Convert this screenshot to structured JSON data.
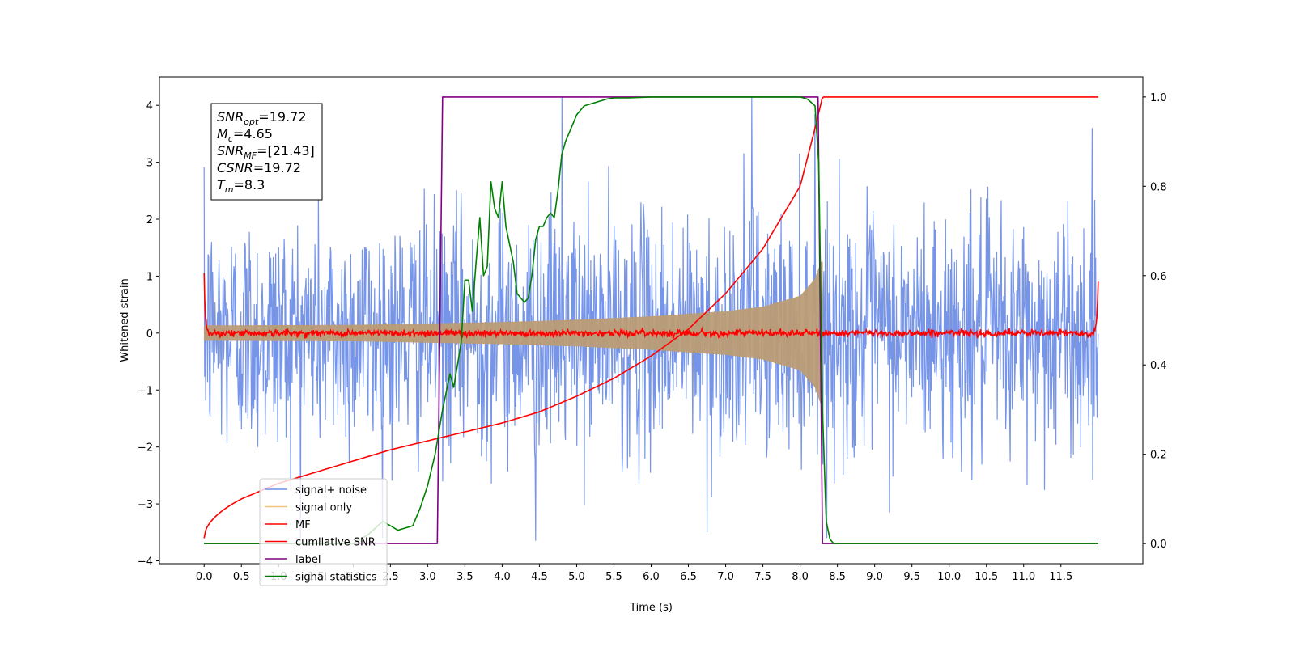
{
  "chart_data": {
    "type": "line",
    "xlabel": "Time (s)",
    "ylabel": "Whitened strain",
    "xlim": [
      -0.6,
      12.6
    ],
    "ylim": [
      -4.05,
      4.5
    ],
    "ylim_right": [
      -0.045,
      1.045
    ],
    "x_ticks": [
      0.0,
      0.5,
      1.0,
      1.5,
      2.0,
      2.5,
      3.0,
      3.5,
      4.0,
      4.5,
      5.0,
      5.5,
      6.0,
      6.5,
      7.0,
      7.5,
      8.0,
      8.5,
      9.0,
      9.5,
      10.0,
      10.5,
      11.0,
      11.5
    ],
    "x_tick_labels": [
      "0.0",
      "0.5",
      "1.0",
      "1.5",
      "2.0",
      "2.5",
      "3.0",
      "3.5",
      "4.0",
      "4.5",
      "5.0",
      "5.5",
      "6.0",
      "6.5",
      "7.0",
      "7.5",
      "8.0",
      "8.5",
      "9.0",
      "9.5",
      "10.0",
      "10.5",
      "11.0",
      "11.5"
    ],
    "y_ticks": [
      -4,
      -3,
      -2,
      -1,
      0,
      1,
      2,
      3,
      4
    ],
    "y_tick_labels": [
      "−4",
      "−3",
      "−2",
      "−1",
      "0",
      "1",
      "2",
      "3",
      "4"
    ],
    "y_right_ticks": [
      0.0,
      0.2,
      0.4,
      0.6,
      0.8,
      1.0
    ],
    "y_right_tick_labels": [
      "0.0",
      "0.2",
      "0.4",
      "0.6",
      "0.8",
      "1.0"
    ],
    "annotation": {
      "snr_opt": {
        "name": "SNR",
        "sub": "opt",
        "value": "=19.72"
      },
      "mc": {
        "name": "M",
        "sub": "c",
        "value": "=4.65"
      },
      "snr_mf": {
        "name": "SNR",
        "sub": "MF",
        "value": "=[21.43]"
      },
      "csnr": {
        "name": "CSNR",
        "sub": "",
        "value": "=19.72"
      },
      "tm": {
        "name": "T",
        "sub": "m",
        "value": "=8.3"
      }
    },
    "legend_position": "lower-left",
    "series": [
      {
        "name": "signal+ noise",
        "color": "#6f8fe8",
        "axis": "left",
        "t_range": [
          0,
          12
        ],
        "noise_std": 1.0,
        "peaks": [
          [
            4.8,
            4.15
          ],
          [
            7.35,
            4.15
          ],
          [
            4.45,
            -3.65
          ],
          [
            6.75,
            -3.5
          ],
          [
            8.2,
            3.85
          ]
        ]
      },
      {
        "name": "signal only",
        "color": "#bb9c76",
        "axis": "left",
        "t_range": [
          0,
          8.3
        ],
        "amplitude_envelope": [
          [
            0.0,
            0.13
          ],
          [
            2.0,
            0.14
          ],
          [
            4.0,
            0.19
          ],
          [
            5.0,
            0.23
          ],
          [
            6.0,
            0.29
          ],
          [
            7.0,
            0.38
          ],
          [
            7.5,
            0.46
          ],
          [
            8.0,
            0.65
          ],
          [
            8.2,
            0.95
          ],
          [
            8.28,
            1.25
          ]
        ]
      },
      {
        "name": "MF",
        "color": "#ff0000",
        "axis": "left",
        "t_range": [
          0,
          12
        ],
        "start_value": 1.0,
        "end_value": 0.92,
        "noise_std": 0.03
      },
      {
        "name": "cumilative SNR",
        "color": "#ff0000",
        "axis": "right",
        "x": [
          0.0,
          0.05,
          0.5,
          1.0,
          1.5,
          2.0,
          2.5,
          3.0,
          3.5,
          4.0,
          4.5,
          5.0,
          5.5,
          6.0,
          6.5,
          7.0,
          7.5,
          8.0,
          8.2,
          8.3,
          12.0
        ],
        "y": [
          0.012,
          0.04,
          0.1,
          0.135,
          0.16,
          0.185,
          0.21,
          0.23,
          0.25,
          0.27,
          0.295,
          0.33,
          0.37,
          0.42,
          0.48,
          0.56,
          0.66,
          0.8,
          0.93,
          1.0,
          1.0
        ]
      },
      {
        "name": "label",
        "color": "#800080",
        "axis": "right",
        "x": [
          0.0,
          3.13,
          3.2,
          8.24,
          8.3,
          12.0
        ],
        "y": [
          0.0,
          0.0,
          1.0,
          1.0,
          0.0,
          0.0
        ]
      },
      {
        "name": "signal statistics",
        "color": "#008000",
        "axis": "right",
        "x": [
          0.0,
          2.0,
          2.2,
          2.4,
          2.6,
          2.8,
          2.9,
          3.0,
          3.1,
          3.2,
          3.25,
          3.3,
          3.35,
          3.4,
          3.45,
          3.5,
          3.55,
          3.6,
          3.65,
          3.7,
          3.75,
          3.8,
          3.85,
          3.9,
          3.95,
          4.0,
          4.05,
          4.1,
          4.15,
          4.2,
          4.25,
          4.3,
          4.35,
          4.4,
          4.45,
          4.5,
          4.55,
          4.6,
          4.65,
          4.7,
          4.75,
          4.8,
          4.85,
          4.9,
          5.0,
          5.1,
          5.2,
          5.3,
          5.4,
          5.5,
          5.7,
          6.0,
          6.5,
          7.0,
          7.5,
          8.0,
          8.1,
          8.2,
          8.25,
          8.3,
          8.35,
          8.4,
          8.45,
          8.5,
          8.6,
          12.0
        ],
        "y": [
          0.0,
          0.0,
          0.02,
          0.05,
          0.03,
          0.04,
          0.08,
          0.13,
          0.2,
          0.3,
          0.34,
          0.38,
          0.35,
          0.4,
          0.45,
          0.59,
          0.59,
          0.52,
          0.63,
          0.73,
          0.6,
          0.62,
          0.81,
          0.75,
          0.73,
          0.81,
          0.71,
          0.67,
          0.63,
          0.56,
          0.55,
          0.54,
          0.55,
          0.6,
          0.68,
          0.71,
          0.71,
          0.73,
          0.74,
          0.73,
          0.79,
          0.87,
          0.9,
          0.92,
          0.96,
          0.98,
          0.985,
          0.99,
          0.995,
          0.998,
          0.998,
          1.0,
          1.0,
          1.0,
          1.0,
          1.0,
          0.995,
          0.98,
          0.85,
          0.3,
          0.05,
          0.01,
          0.0,
          0.0,
          0.0,
          0.0
        ]
      }
    ]
  }
}
